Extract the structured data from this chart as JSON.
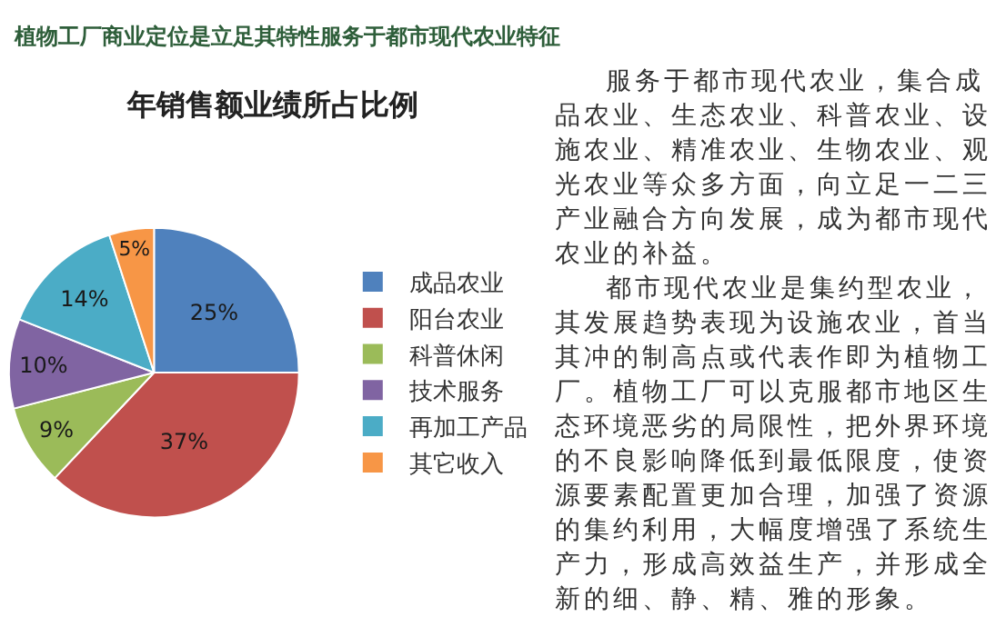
{
  "chart_data": {
    "type": "pie",
    "title": "植物工厂商业定位是立足其特性服务于都市现代农业特征",
    "subtitle": "年销售额业绩所占比例",
    "categories": [
      "成品农业",
      "阳台农业",
      "科普休闲",
      "技术服务",
      "再加工产品",
      "其它收入"
    ],
    "values": [
      25,
      37,
      9,
      10,
      14,
      5
    ],
    "colors": [
      "#4f81bd",
      "#c0504d",
      "#9bbb59",
      "#8064a2",
      "#4bacc6",
      "#f79646"
    ],
    "value_labels": [
      "25%",
      "37%",
      "9%",
      "10%",
      "14%",
      "5%"
    ],
    "legend": "right",
    "annotations": [
      "服务于都市现代农业，集合成品农业、生态农业、科普农业、设施农业、精准农业、生物农业、观光农业等众多方面，向立足一二三产业融合方向发展，成为都市现代农业的补益。",
      "都市现代农业是集约型农业，其发展趋势表现为设施农业，首当其冲的制高点或代表作即为植物工厂。植物工厂可以克服都市地区生态环境恶劣的局限性，把外界环境的不良影响降低到最低限度，使资源要素配置更加合理，加强了资源的集约利用，大幅度增强了系统生产力，形成高效益生产，并形成全新的细、静、精、雅的形象。"
    ]
  }
}
